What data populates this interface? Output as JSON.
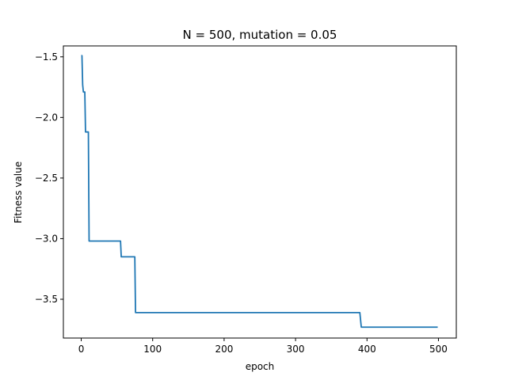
{
  "chart_data": {
    "type": "line",
    "title": "N = 500, mutation = 0.05",
    "xlabel": "epoch",
    "ylabel": "Fitness value",
    "xlim": [
      -25,
      525
    ],
    "ylim": [
      -3.82,
      -1.41
    ],
    "xticks": [
      0,
      100,
      200,
      300,
      400,
      500
    ],
    "xtick_labels": [
      "0",
      "100",
      "200",
      "300",
      "400",
      "500"
    ],
    "yticks": [
      -1.5,
      -2.0,
      -2.5,
      -3.0,
      -3.5
    ],
    "ytick_labels": [
      "−1.5",
      "−2.0",
      "−2.5",
      "−3.0",
      "−3.5"
    ],
    "grid": false,
    "legend": false,
    "series": [
      {
        "color": "#1f77b4",
        "points": [
          [
            0,
            -1.49
          ],
          [
            1,
            -1.49
          ],
          [
            2,
            -1.73
          ],
          [
            3,
            -1.79
          ],
          [
            5,
            -1.79
          ],
          [
            6,
            -2.12
          ],
          [
            10,
            -2.12
          ],
          [
            11,
            -3.02
          ],
          [
            55,
            -3.02
          ],
          [
            56,
            -3.15
          ],
          [
            75,
            -3.15
          ],
          [
            76,
            -3.61
          ],
          [
            390,
            -3.61
          ],
          [
            392,
            -3.73
          ],
          [
            499,
            -3.73
          ]
        ]
      }
    ]
  }
}
